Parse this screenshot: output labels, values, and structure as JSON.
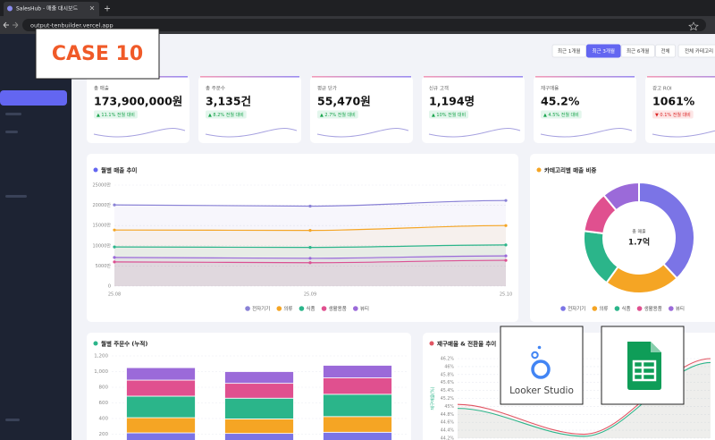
{
  "browser": {
    "tab_title": "SalesHub - 매출 대시보드",
    "url": "output-tenbuilder.vercel.app"
  },
  "overlay": {
    "case_label": "CASE 10",
    "tool_label": "Looker Studio"
  },
  "filters": {
    "periods": [
      "최근 1개월",
      "최근 3개월",
      "최근 6개월",
      "전체"
    ],
    "active_period": 1,
    "category": "전체 카테고리"
  },
  "kpis": [
    {
      "label": "총 매출",
      "value": "173,900,000원",
      "change": "▲ 11.1% 전월 대비",
      "trend": "up"
    },
    {
      "label": "총 주문수",
      "value": "3,135건",
      "change": "▲ 8.2% 전월 대비",
      "trend": "up"
    },
    {
      "label": "평균 단가",
      "value": "55,470원",
      "change": "▲ 2.7% 전월 대비",
      "trend": "up"
    },
    {
      "label": "신규 고객",
      "value": "1,194명",
      "change": "▲ 10% 전월 대비",
      "trend": "up"
    },
    {
      "label": "재구매율",
      "value": "45.2%",
      "change": "▲ 4.5% 전월 대비",
      "trend": "up"
    },
    {
      "label": "광고 ROI",
      "value": "1061%",
      "change": "▼ 0.1% 전월 대비",
      "trend": "down"
    }
  ],
  "chart_data": [
    {
      "type": "line",
      "title": "월별 매출 추이",
      "categories": [
        "25.08",
        "25.09",
        "25.10"
      ],
      "ylim": [
        0,
        25000
      ],
      "yticks": [
        0,
        {
          "value": 5000,
          "label": "5000만"
        },
        {
          "value": 10000,
          "label": "10000만"
        },
        {
          "value": 15000,
          "label": "15000만"
        },
        {
          "value": 20000,
          "label": "20000만"
        },
        {
          "value": 25000,
          "label": "25000만"
        }
      ],
      "grid": true,
      "area": true,
      "markers": true,
      "series": [
        {
          "name": "전자기기",
          "color": "#8a82d6",
          "values": [
            20100,
            19800,
            21200
          ]
        },
        {
          "name": "의류",
          "color": "#f5a524",
          "values": [
            13900,
            13800,
            15000
          ]
        },
        {
          "name": "식품",
          "color": "#2bb58a",
          "values": [
            9700,
            9600,
            10200
          ]
        },
        {
          "name": "생활용품",
          "color": "#e0508f",
          "values": [
            6000,
            5800,
            6400
          ]
        },
        {
          "name": "뷰티",
          "color": "#9b6ad9",
          "values": [
            7100,
            6900,
            7500
          ]
        }
      ]
    },
    {
      "type": "pie",
      "title": "카테고리별 매출 비중",
      "center_label": "총 매출",
      "center_value": "1.7억",
      "categories": [
        "전자기기",
        "의류",
        "식품",
        "생활용품",
        "뷰티"
      ],
      "values": [
        38,
        22,
        17,
        12,
        11
      ],
      "colors": [
        "#7b74e6",
        "#f5a524",
        "#2bb58a",
        "#e0508f",
        "#9b6ad9"
      ]
    },
    {
      "type": "bar",
      "stacked": true,
      "title": "월별 주문수 (누적)",
      "categories": [
        null,
        null,
        null
      ],
      "ylim": [
        0,
        1200
      ],
      "yticks": [
        200,
        400,
        600,
        800,
        {
          "value": 1000,
          "label": "1,000"
        },
        {
          "value": 1200,
          "label": "1,200"
        }
      ],
      "series": [
        {
          "color": "#7b74e6",
          "values": [
            217,
            210,
            225
          ]
        },
        {
          "color": "#f5a524",
          "values": [
            194,
            185,
            200
          ]
        },
        {
          "color": "#2bb58a",
          "values": [
            275,
            265,
            285
          ]
        },
        {
          "color": "#e0508f",
          "values": [
            205,
            190,
            210
          ]
        },
        {
          "color": "#9b6ad9",
          "values": [
            159,
            150,
            160
          ]
        }
      ]
    },
    {
      "type": "line",
      "title": "재구매율 & 전환율 추이",
      "y_label": "재구매율(%)",
      "ylim": [
        44.2,
        46.2
      ],
      "yticks": [
        {
          "value": 44.2,
          "label": "44.2%"
        },
        {
          "value": 44.4,
          "label": "44.4%"
        },
        {
          "value": 44.6,
          "label": "44.6%"
        },
        {
          "value": 44.8,
          "label": "44.8%"
        },
        {
          "value": 45,
          "label": "45%"
        },
        {
          "value": 45.2,
          "label": "45.2%"
        },
        {
          "value": 45.4,
          "label": "45.4%"
        },
        {
          "value": 45.6,
          "label": "45.6%"
        },
        {
          "value": 45.8,
          "label": "45.8%"
        },
        {
          "value": 46,
          "label": "46%"
        },
        {
          "value": 46.2,
          "label": "46.2%"
        }
      ],
      "grid": true,
      "area": true,
      "markers": false,
      "series": [
        {
          "color": "#e05563",
          "values": [
            45.05,
            44.3,
            46.2
          ]
        },
        {
          "color": "#2bb58a",
          "values": [
            44.95,
            44.25,
            46.1
          ]
        }
      ]
    }
  ]
}
